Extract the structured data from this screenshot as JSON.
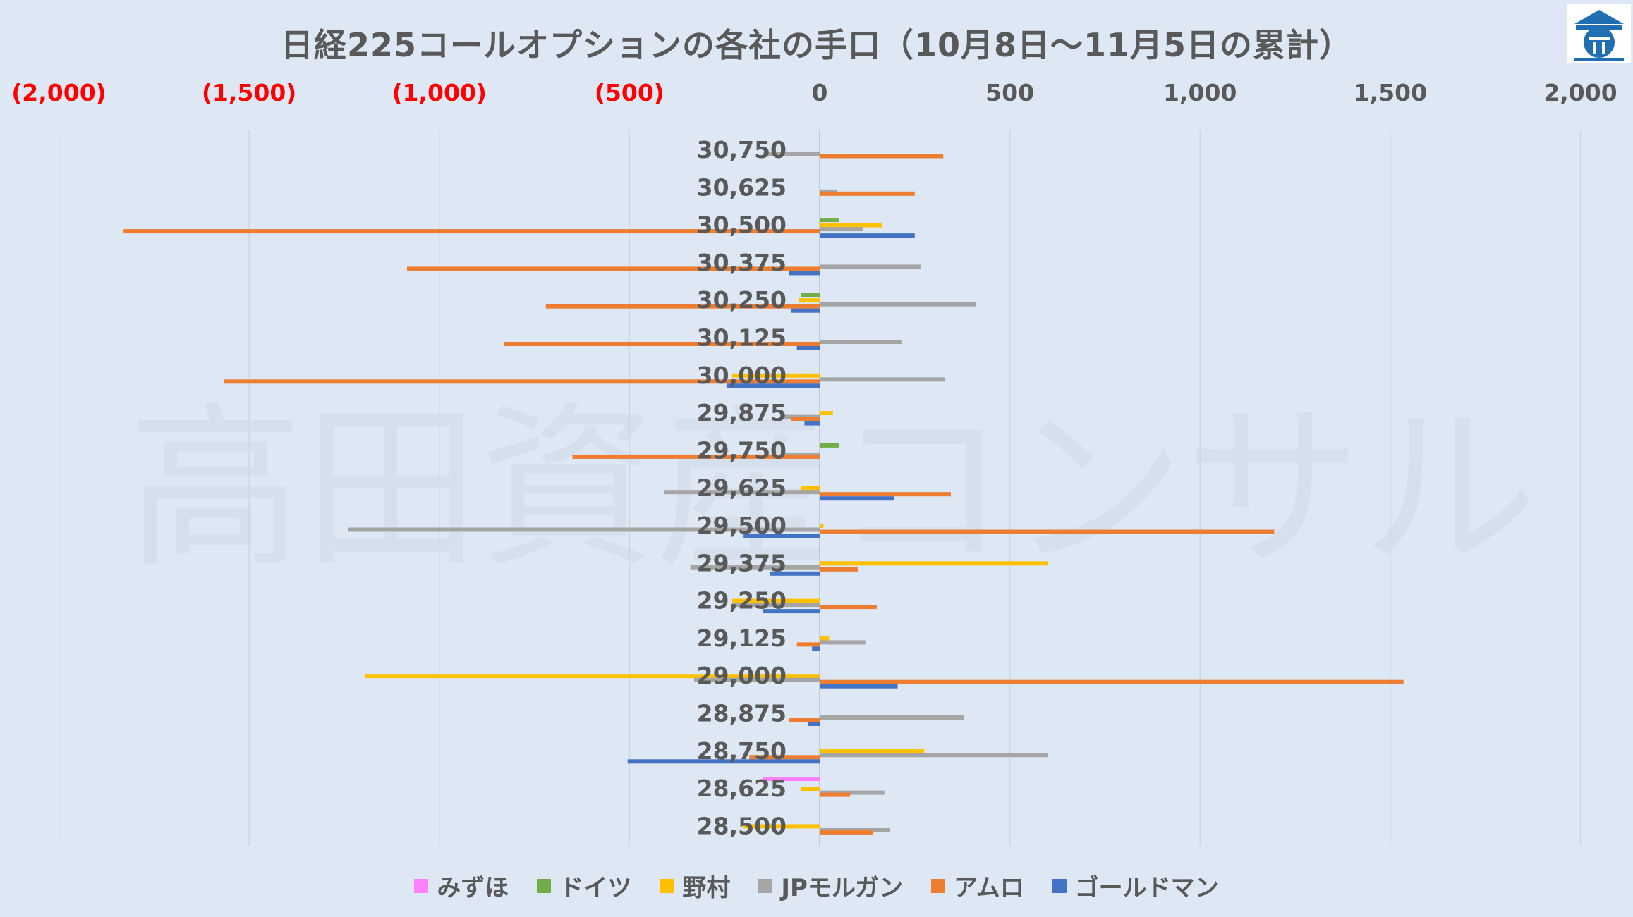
{
  "title": "日経225コールオプションの各社の手口（10月8日～11月5日の累計）",
  "colors": {
    "background": "#dee8f5",
    "grid": "#cfd6df",
    "negative_tick": "#ff0000",
    "positive_tick": "#595959",
    "watermark": "#d6e0ed"
  },
  "watermark_text": "高田資産コンサル",
  "logo": {
    "name": "takada-logo",
    "color": "#1f6fb2"
  },
  "chart_data": {
    "type": "bar",
    "orientation": "horizontal",
    "title": "日経225コールオプションの各社の手口（10月8日～11月5日の累計）",
    "xlim": [
      -2000,
      2000
    ],
    "x_ticks": [
      -2000,
      -1500,
      -1000,
      -500,
      0,
      500,
      1000,
      1500,
      2000
    ],
    "x_tick_labels": [
      "(2,000)",
      "(1,500)",
      "(1,000)",
      "(500)",
      "0",
      "500",
      "1,000",
      "1,500",
      "2,000"
    ],
    "grid": true,
    "legend_position": "bottom",
    "categories": [
      "30,750",
      "30,625",
      "30,500",
      "30,375",
      "30,250",
      "30,125",
      "30,000",
      "29,875",
      "29,750",
      "29,625",
      "29,500",
      "29,375",
      "29,250",
      "29,125",
      "29,000",
      "28,875",
      "28,750",
      "28,625",
      "28,500"
    ],
    "series": [
      {
        "name": "みずほ",
        "color": "#ff80ff",
        "values": [
          0,
          0,
          0,
          0,
          0,
          0,
          0,
          0,
          0,
          0,
          0,
          0,
          0,
          0,
          0,
          0,
          0,
          -150,
          0
        ]
      },
      {
        "name": "ドイツ",
        "color": "#70ad47",
        "values": [
          0,
          0,
          50,
          0,
          -50,
          0,
          0,
          0,
          50,
          0,
          0,
          0,
          0,
          0,
          0,
          0,
          0,
          0,
          0
        ]
      },
      {
        "name": "野村",
        "color": "#ffc000",
        "values": [
          0,
          0,
          165,
          0,
          -55,
          0,
          -230,
          35,
          0,
          -50,
          10,
          600,
          -230,
          25,
          -1195,
          0,
          275,
          -50,
          -200
        ]
      },
      {
        "name": "JPモルガン",
        "color": "#a5a5a5",
        "values": [
          -150,
          45,
          115,
          265,
          410,
          215,
          330,
          -100,
          -100,
          -410,
          -1240,
          -340,
          -230,
          120,
          -330,
          380,
          600,
          170,
          185
        ]
      },
      {
        "name": "アムロ",
        "color": "#ed7d31",
        "values": [
          325,
          250,
          -1830,
          -1085,
          -720,
          -830,
          -1565,
          -75,
          -650,
          345,
          1195,
          100,
          150,
          -60,
          1535,
          -80,
          -185,
          80,
          140
        ]
      },
      {
        "name": "ゴールドマン",
        "color": "#4472c4",
        "values": [
          0,
          0,
          250,
          -80,
          -75,
          -60,
          -245,
          -40,
          0,
          195,
          -200,
          -130,
          -150,
          -20,
          205,
          -30,
          -505,
          0,
          0
        ]
      }
    ]
  }
}
